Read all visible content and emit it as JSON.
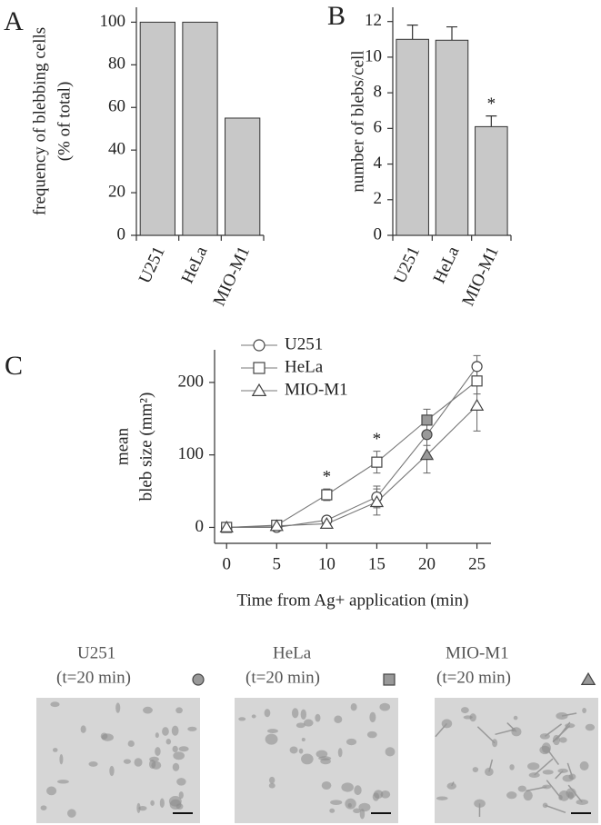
{
  "chart_data": [
    {
      "type": "bar",
      "panel_label": "A",
      "ylabel": [
        "frequency of blebbing cells",
        "(% of total)"
      ],
      "categories": [
        "U251",
        "HeLa",
        "MIO-M1"
      ],
      "values": [
        100,
        100,
        55
      ],
      "color": "#c8c8c8",
      "ylim": [
        0,
        107
      ],
      "yticks": [
        0,
        20,
        40,
        60,
        80,
        100
      ]
    },
    {
      "type": "bar",
      "panel_label": "B",
      "ylabel": [
        "number of blebs/cell"
      ],
      "categories": [
        "U251",
        "HeLa",
        "MIO-M1"
      ],
      "values": [
        11,
        10.95,
        6.1
      ],
      "errors": [
        0.8,
        0.75,
        0.6
      ],
      "color": "#c8c8c8",
      "annotations": [
        {
          "category": "MIO-M1",
          "text": "*"
        }
      ],
      "ylim": [
        0,
        12.8
      ],
      "yticks": [
        0,
        2,
        4,
        6,
        8,
        10,
        12
      ]
    },
    {
      "type": "line",
      "panel_label": "C",
      "ylabel": [
        "mean",
        "bleb size (mm²)"
      ],
      "xlabel": "Time from Ag+ application (min)",
      "x": [
        0,
        5,
        10,
        15,
        20,
        25
      ],
      "series": [
        {
          "name": "U251",
          "marker": "circle",
          "values": [
            0,
            0,
            10,
            42,
            128,
            222
          ],
          "errors": [
            2,
            2,
            4,
            15,
            15,
            15
          ]
        },
        {
          "name": "HeLa",
          "marker": "square",
          "values": [
            0,
            3,
            45,
            90,
            148,
            202
          ],
          "errors": [
            2,
            2,
            8,
            15,
            15,
            18
          ]
        },
        {
          "name": "MIO-M1",
          "marker": "triangle",
          "values": [
            0,
            2,
            5,
            35,
            100,
            168
          ],
          "errors": [
            2,
            2,
            3,
            18,
            25,
            35
          ]
        }
      ],
      "annotations": [
        {
          "x": 10,
          "text": "*"
        },
        {
          "x": 15,
          "text": "*"
        }
      ],
      "highlight_x": 20,
      "highlight_color": "#999999",
      "legend": "upper-left",
      "xlim": [
        -1.2,
        26.4
      ],
      "xticks": [
        0,
        5,
        10,
        15,
        20,
        25
      ],
      "ylim": [
        -22,
        245
      ],
      "yticks": [
        0,
        100,
        200
      ]
    }
  ],
  "micrographs": [
    {
      "label": "U251",
      "time": "(t=20 min)",
      "marker": "circle"
    },
    {
      "label": "HeLa",
      "time": "(t=20 min)",
      "marker": "square"
    },
    {
      "label": "MIO-M1",
      "time": "(t=20 min)",
      "marker": "triangle"
    }
  ]
}
